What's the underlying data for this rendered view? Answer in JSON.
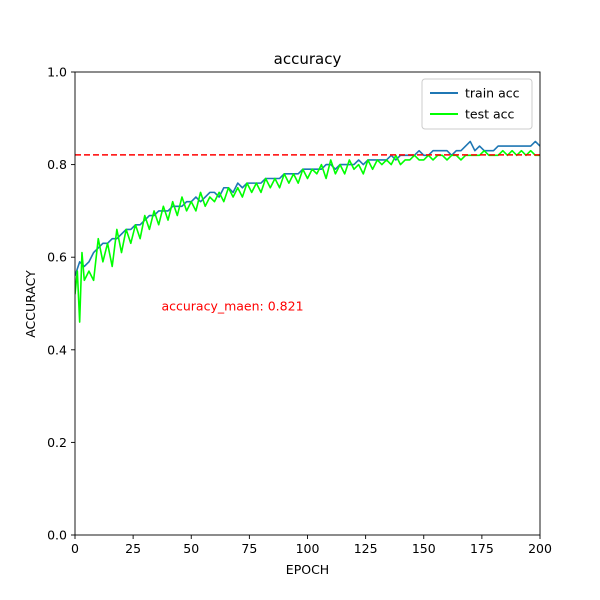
{
  "chart_data": {
    "type": "line",
    "title": "accuracy",
    "xlabel": "EPOCH",
    "ylabel": "ACCURACY",
    "xlim": [
      0,
      200
    ],
    "ylim": [
      0.0,
      1.0
    ],
    "xticks": [
      0,
      25,
      50,
      75,
      100,
      125,
      150,
      175,
      200
    ],
    "yticks": [
      0.0,
      0.2,
      0.4,
      0.6,
      0.8,
      1.0
    ],
    "xtick_labels": [
      "0",
      "25",
      "50",
      "75",
      "100",
      "125",
      "150",
      "175",
      "200"
    ],
    "ytick_labels": [
      "0.0",
      "0.2",
      "0.4",
      "0.6",
      "0.8",
      "1.0"
    ],
    "grid": false,
    "legend_position": "top-right",
    "reference_line": {
      "y": 0.821,
      "color": "#ff0000",
      "style": "dashed"
    },
    "annotation": {
      "text": "accuracy_maen: 0.821",
      "x": 100,
      "y": 0.5,
      "color": "#ff0000"
    },
    "series": [
      {
        "name": "train acc",
        "color": "#1f77b4",
        "x": [
          0,
          2,
          4,
          6,
          8,
          10,
          12,
          14,
          16,
          18,
          20,
          22,
          24,
          26,
          28,
          30,
          32,
          34,
          36,
          38,
          40,
          42,
          44,
          46,
          48,
          50,
          52,
          54,
          56,
          58,
          60,
          62,
          64,
          66,
          68,
          70,
          72,
          74,
          76,
          78,
          80,
          82,
          84,
          86,
          88,
          90,
          92,
          94,
          96,
          98,
          100,
          102,
          104,
          106,
          108,
          110,
          112,
          114,
          116,
          118,
          120,
          122,
          124,
          126,
          128,
          130,
          132,
          134,
          136,
          138,
          140,
          142,
          144,
          146,
          148,
          150,
          152,
          154,
          156,
          158,
          160,
          162,
          164,
          166,
          168,
          170,
          172,
          174,
          176,
          178,
          180,
          182,
          184,
          186,
          188,
          190,
          192,
          194,
          196,
          198,
          200
        ],
        "values": [
          0.56,
          0.59,
          0.58,
          0.59,
          0.61,
          0.62,
          0.63,
          0.63,
          0.64,
          0.64,
          0.65,
          0.66,
          0.66,
          0.67,
          0.67,
          0.68,
          0.69,
          0.69,
          0.7,
          0.7,
          0.7,
          0.71,
          0.71,
          0.71,
          0.72,
          0.72,
          0.73,
          0.72,
          0.73,
          0.74,
          0.74,
          0.73,
          0.75,
          0.75,
          0.74,
          0.76,
          0.75,
          0.76,
          0.76,
          0.76,
          0.76,
          0.77,
          0.77,
          0.77,
          0.77,
          0.78,
          0.78,
          0.78,
          0.78,
          0.79,
          0.79,
          0.79,
          0.79,
          0.79,
          0.8,
          0.8,
          0.79,
          0.8,
          0.8,
          0.8,
          0.8,
          0.81,
          0.8,
          0.81,
          0.81,
          0.81,
          0.81,
          0.81,
          0.82,
          0.81,
          0.82,
          0.82,
          0.82,
          0.82,
          0.83,
          0.82,
          0.82,
          0.83,
          0.83,
          0.83,
          0.83,
          0.82,
          0.83,
          0.83,
          0.84,
          0.85,
          0.83,
          0.84,
          0.83,
          0.83,
          0.83,
          0.84,
          0.84,
          0.84,
          0.84,
          0.84,
          0.84,
          0.84,
          0.84,
          0.85,
          0.84
        ]
      },
      {
        "name": "test acc",
        "color": "#00ff00",
        "x": [
          0,
          1,
          2,
          3,
          4,
          6,
          8,
          10,
          12,
          14,
          16,
          18,
          20,
          22,
          24,
          26,
          28,
          30,
          32,
          34,
          36,
          38,
          40,
          42,
          44,
          46,
          48,
          50,
          52,
          54,
          56,
          58,
          60,
          62,
          64,
          66,
          68,
          70,
          72,
          74,
          76,
          78,
          80,
          82,
          84,
          86,
          88,
          90,
          92,
          94,
          96,
          98,
          100,
          102,
          104,
          106,
          108,
          110,
          112,
          114,
          116,
          118,
          120,
          122,
          124,
          126,
          128,
          130,
          132,
          134,
          136,
          138,
          140,
          142,
          144,
          146,
          148,
          150,
          152,
          154,
          156,
          158,
          160,
          162,
          164,
          166,
          168,
          170,
          172,
          174,
          176,
          178,
          180,
          182,
          184,
          186,
          188,
          190,
          192,
          194,
          196,
          198,
          200
        ],
        "values": [
          0.52,
          0.57,
          0.46,
          0.61,
          0.55,
          0.57,
          0.55,
          0.64,
          0.59,
          0.63,
          0.58,
          0.66,
          0.61,
          0.66,
          0.63,
          0.67,
          0.64,
          0.69,
          0.66,
          0.7,
          0.67,
          0.71,
          0.68,
          0.72,
          0.69,
          0.73,
          0.7,
          0.72,
          0.7,
          0.74,
          0.71,
          0.73,
          0.72,
          0.74,
          0.72,
          0.75,
          0.73,
          0.75,
          0.73,
          0.76,
          0.74,
          0.76,
          0.74,
          0.77,
          0.75,
          0.77,
          0.75,
          0.78,
          0.76,
          0.78,
          0.76,
          0.79,
          0.77,
          0.79,
          0.78,
          0.8,
          0.77,
          0.81,
          0.78,
          0.8,
          0.78,
          0.81,
          0.79,
          0.8,
          0.78,
          0.81,
          0.79,
          0.81,
          0.8,
          0.81,
          0.8,
          0.82,
          0.8,
          0.81,
          0.81,
          0.82,
          0.81,
          0.81,
          0.82,
          0.81,
          0.82,
          0.82,
          0.81,
          0.82,
          0.82,
          0.81,
          0.82,
          0.82,
          0.82,
          0.82,
          0.83,
          0.82,
          0.82,
          0.82,
          0.83,
          0.82,
          0.83,
          0.82,
          0.83,
          0.82,
          0.83,
          0.82,
          0.82
        ]
      }
    ]
  }
}
